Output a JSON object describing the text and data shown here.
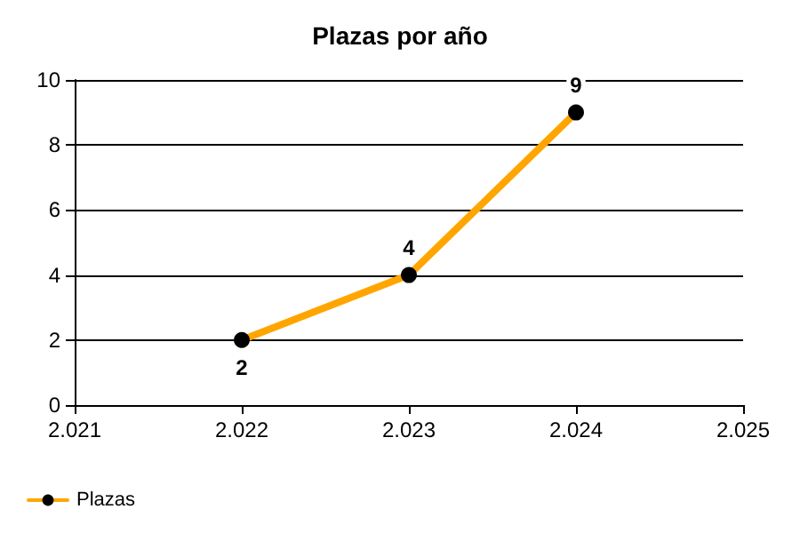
{
  "chart_data": {
    "type": "line",
    "title": "Plazas por año",
    "x": [
      2022,
      2023,
      2024
    ],
    "series": [
      {
        "name": "Plazas",
        "color": "#ffa500",
        "values": [
          2,
          4,
          9
        ]
      }
    ],
    "xlim": [
      2021,
      2025
    ],
    "xticks": [
      {
        "value": 2021,
        "label": "2.021"
      },
      {
        "value": 2022,
        "label": "2.022"
      },
      {
        "value": 2023,
        "label": "2.023"
      },
      {
        "value": 2024,
        "label": "2.024"
      },
      {
        "value": 2025,
        "label": "2.025"
      }
    ],
    "ylim": [
      0,
      10
    ],
    "yticks": [
      0,
      2,
      4,
      6,
      8,
      10
    ],
    "grid": "y",
    "legend": "bottom left",
    "marker": "circle",
    "line_style": "solid",
    "data_labels": true
  }
}
